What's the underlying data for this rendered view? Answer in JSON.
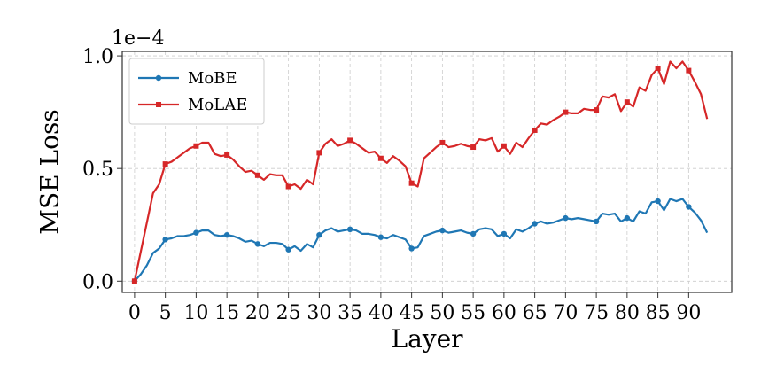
{
  "chart_data": {
    "type": "line",
    "title": "",
    "xlabel": "Layer",
    "ylabel": "MSE Loss",
    "y_multiplier": "1e−4",
    "xlim": [
      -2,
      97
    ],
    "ylim": [
      -0.05,
      1.02
    ],
    "xticks": [
      0,
      5,
      10,
      15,
      20,
      25,
      30,
      35,
      40,
      45,
      50,
      55,
      60,
      65,
      70,
      75,
      80,
      85,
      90
    ],
    "yticks": [
      0.0,
      0.5,
      1.0
    ],
    "ytick_labels": [
      "0.0",
      "0.5",
      "1.0"
    ],
    "grid": true,
    "legend_position": "top-left",
    "x": [
      0,
      1,
      2,
      3,
      4,
      5,
      6,
      7,
      8,
      9,
      10,
      11,
      12,
      13,
      14,
      15,
      16,
      17,
      18,
      19,
      20,
      21,
      22,
      23,
      24,
      25,
      26,
      27,
      28,
      29,
      30,
      31,
      32,
      33,
      34,
      35,
      36,
      37,
      38,
      39,
      40,
      41,
      42,
      43,
      44,
      45,
      46,
      47,
      48,
      49,
      50,
      51,
      52,
      53,
      54,
      55,
      56,
      57,
      58,
      59,
      60,
      61,
      62,
      63,
      64,
      65,
      66,
      67,
      68,
      69,
      70,
      71,
      72,
      73,
      74,
      75,
      76,
      77,
      78,
      79,
      80,
      81,
      82,
      83,
      84,
      85,
      86,
      87,
      88,
      89,
      90,
      91,
      92,
      93
    ],
    "series": [
      {
        "name": "MoBE",
        "color": "#1f77b4",
        "marker": "circle",
        "values": [
          0.0,
          0.03,
          0.07,
          0.125,
          0.145,
          0.185,
          0.19,
          0.2,
          0.2,
          0.205,
          0.215,
          0.225,
          0.225,
          0.205,
          0.2,
          0.205,
          0.2,
          0.19,
          0.175,
          0.18,
          0.165,
          0.155,
          0.17,
          0.17,
          0.165,
          0.14,
          0.155,
          0.135,
          0.165,
          0.15,
          0.205,
          0.225,
          0.235,
          0.22,
          0.225,
          0.23,
          0.225,
          0.21,
          0.21,
          0.205,
          0.195,
          0.19,
          0.205,
          0.195,
          0.185,
          0.145,
          0.15,
          0.2,
          0.21,
          0.22,
          0.225,
          0.215,
          0.22,
          0.225,
          0.215,
          0.21,
          0.23,
          0.235,
          0.23,
          0.2,
          0.21,
          0.19,
          0.23,
          0.22,
          0.235,
          0.255,
          0.265,
          0.255,
          0.26,
          0.27,
          0.28,
          0.275,
          0.28,
          0.275,
          0.27,
          0.265,
          0.3,
          0.295,
          0.3,
          0.265,
          0.28,
          0.265,
          0.31,
          0.3,
          0.35,
          0.355,
          0.315,
          0.365,
          0.355,
          0.365,
          0.33,
          0.305,
          0.27,
          0.215
        ]
      },
      {
        "name": "MoLAE",
        "color": "#d62728",
        "marker": "square",
        "values": [
          0.0,
          0.13,
          0.26,
          0.39,
          0.43,
          0.52,
          0.53,
          0.55,
          0.57,
          0.59,
          0.6,
          0.615,
          0.615,
          0.565,
          0.555,
          0.56,
          0.54,
          0.51,
          0.485,
          0.49,
          0.47,
          0.45,
          0.475,
          0.47,
          0.47,
          0.42,
          0.43,
          0.41,
          0.45,
          0.43,
          0.57,
          0.61,
          0.63,
          0.6,
          0.61,
          0.625,
          0.61,
          0.59,
          0.57,
          0.575,
          0.545,
          0.525,
          0.555,
          0.535,
          0.51,
          0.435,
          0.42,
          0.545,
          0.57,
          0.595,
          0.615,
          0.595,
          0.6,
          0.61,
          0.6,
          0.595,
          0.63,
          0.625,
          0.635,
          0.575,
          0.6,
          0.565,
          0.615,
          0.595,
          0.635,
          0.67,
          0.7,
          0.695,
          0.715,
          0.73,
          0.75,
          0.745,
          0.745,
          0.765,
          0.76,
          0.76,
          0.82,
          0.815,
          0.83,
          0.755,
          0.795,
          0.775,
          0.86,
          0.845,
          0.915,
          0.945,
          0.875,
          0.975,
          0.945,
          0.975,
          0.935,
          0.885,
          0.83,
          0.72
        ]
      }
    ]
  }
}
